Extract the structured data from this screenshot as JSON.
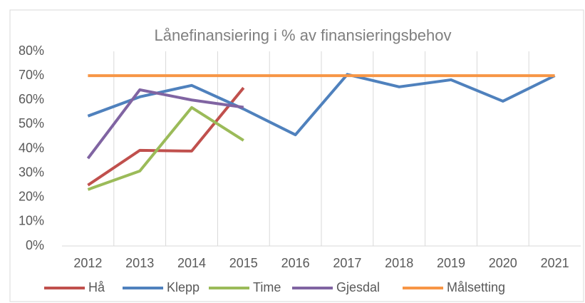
{
  "chart_data": {
    "type": "line",
    "title": "Lånefinansiering i % av finansieringsbehov",
    "categories": [
      "2012",
      "2013",
      "2014",
      "2015",
      "2016",
      "2017",
      "2018",
      "2019",
      "2020",
      "2021"
    ],
    "series": [
      {
        "name": "Hå",
        "color": "#c0504d",
        "values": [
          25,
          39.3,
          39,
          65,
          null,
          null,
          null,
          null,
          null,
          null
        ]
      },
      {
        "name": "Klepp",
        "color": "#4f81bd",
        "values": [
          53.4,
          61.3,
          66,
          56.3,
          45.7,
          70.5,
          65.4,
          68.3,
          59.5,
          70
        ]
      },
      {
        "name": "Time",
        "color": "#9bbb59",
        "values": [
          23.2,
          30.8,
          56.9,
          43.4,
          null,
          null,
          null,
          null,
          null,
          null
        ]
      },
      {
        "name": "Gjesdal",
        "color": "#8064a2",
        "values": [
          36,
          64.2,
          60,
          57,
          null,
          null,
          null,
          null,
          null,
          null
        ]
      },
      {
        "name": "Målsetting",
        "color": "#f79646",
        "values": [
          70,
          70,
          70,
          70,
          70,
          70,
          70,
          70,
          70,
          70
        ]
      }
    ],
    "ylim": [
      0,
      80
    ],
    "yticks": [
      {
        "value": 0,
        "label": "0%"
      },
      {
        "value": 10,
        "label": "10%"
      },
      {
        "value": 20,
        "label": "20%"
      },
      {
        "value": 30,
        "label": "30%"
      },
      {
        "value": 40,
        "label": "40%"
      },
      {
        "value": 50,
        "label": "50%"
      },
      {
        "value": 60,
        "label": "60%"
      },
      {
        "value": 70,
        "label": "70%"
      },
      {
        "value": 80,
        "label": "80%"
      }
    ],
    "legend": "bottom"
  }
}
